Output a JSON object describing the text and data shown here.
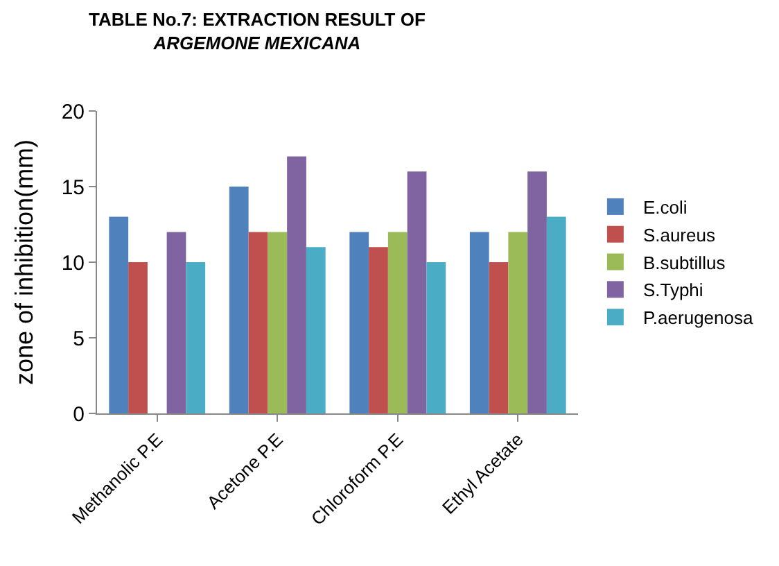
{
  "chart_data": {
    "type": "bar",
    "title": "TABLE No.7: EXTRACTION RESULT OF\nARGEMONE MEXICANA",
    "ylabel": "zone of inhibition(mm)",
    "categories": [
      "Methanolic P.E",
      "Acetone P.E",
      "Chloroform P.E",
      "Ethyl Acetate"
    ],
    "series": [
      {
        "name": "E.coli",
        "color": "#4f81bd",
        "values": [
          13,
          15,
          12,
          12
        ]
      },
      {
        "name": "S.aureus",
        "color": "#c0504d",
        "values": [
          10,
          12,
          11,
          10
        ]
      },
      {
        "name": "B.subtillus",
        "color": "#9bbb59",
        "values": [
          null,
          12,
          12,
          12
        ]
      },
      {
        "name": "S.Typhi",
        "color": "#8064a2",
        "values": [
          12,
          17,
          16,
          16
        ]
      },
      {
        "name": "P.aerugenosa",
        "color": "#4bacc6",
        "values": [
          10,
          11,
          10,
          13
        ]
      }
    ],
    "ylim": [
      0,
      20
    ],
    "yticks": [
      0,
      5,
      10,
      15,
      20
    ],
    "legend": "right"
  }
}
